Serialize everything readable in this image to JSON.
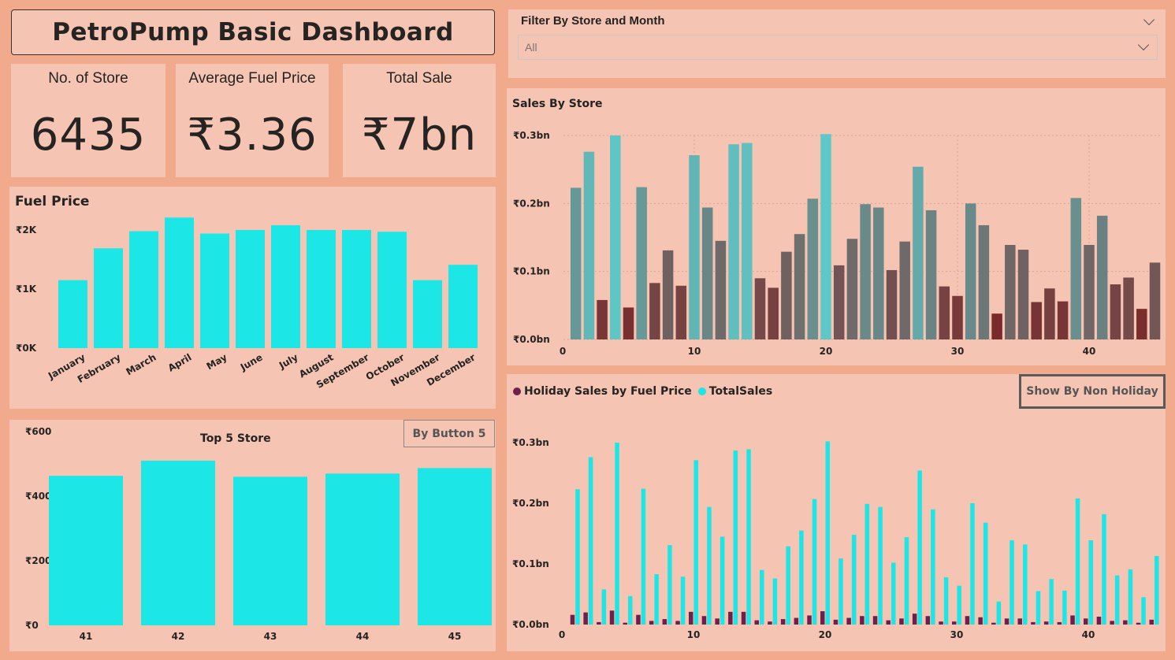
{
  "header": {
    "title": "PetroPump Basic Dashboard"
  },
  "cards": [
    {
      "label": "No. of Store",
      "value": "6435"
    },
    {
      "label": "Average Fuel Price",
      "value": "₹3.36"
    },
    {
      "label": "Total Sale",
      "value": "₹7bn"
    }
  ],
  "filter": {
    "title": "Filter By Store and Month",
    "value": "All"
  },
  "buttons": {
    "top5": "By Button 5",
    "non_holiday": "Show By Non Holiday"
  },
  "colors": {
    "page_bg": "#f2aa8c",
    "panel_bg": "#f5c4b3",
    "cyan": "#1de6e6",
    "holiday": "#6e1f4a"
  },
  "chart_data": [
    {
      "id": "fuel_price",
      "type": "bar",
      "title": "Fuel Price",
      "categories": [
        "January",
        "February",
        "March",
        "April",
        "May",
        "June",
        "July",
        "August",
        "September",
        "October",
        "November",
        "December"
      ],
      "values": [
        1150,
        1690,
        1980,
        2210,
        1940,
        2000,
        2080,
        2000,
        2000,
        1970,
        1150,
        1410
      ],
      "yticks": [
        "₹0K",
        "₹1K",
        "₹2K"
      ],
      "ylim": [
        0,
        2000
      ],
      "grid": false
    },
    {
      "id": "top5",
      "type": "bar",
      "title": "Top 5 Store",
      "categories": [
        "41",
        "42",
        "43",
        "44",
        "45"
      ],
      "values": [
        463,
        510,
        460,
        470,
        487
      ],
      "yticks": [
        "₹0",
        "₹200",
        "₹400",
        "₹600"
      ],
      "ylim": [
        0,
        600
      ],
      "grid": false
    },
    {
      "id": "sales_by_store",
      "type": "bar",
      "title": "Sales By Store",
      "x": [
        1,
        2,
        3,
        4,
        5,
        6,
        7,
        8,
        9,
        10,
        11,
        12,
        13,
        14,
        15,
        16,
        17,
        18,
        19,
        20,
        21,
        22,
        23,
        24,
        25,
        26,
        27,
        28,
        29,
        30,
        31,
        32,
        33,
        34,
        35,
        36,
        37,
        38,
        39,
        40,
        41,
        42,
        43,
        44,
        45
      ],
      "values": [
        0.223,
        0.276,
        0.058,
        0.3,
        0.047,
        0.224,
        0.083,
        0.131,
        0.079,
        0.271,
        0.194,
        0.145,
        0.287,
        0.289,
        0.09,
        0.076,
        0.129,
        0.155,
        0.207,
        0.302,
        0.109,
        0.148,
        0.199,
        0.194,
        0.102,
        0.144,
        0.254,
        0.19,
        0.078,
        0.064,
        0.2,
        0.168,
        0.038,
        0.139,
        0.132,
        0.055,
        0.075,
        0.056,
        0.208,
        0.139,
        0.182,
        0.081,
        0.091,
        0.045,
        0.113
      ],
      "xticks": [
        "0",
        "10",
        "20",
        "30",
        "40"
      ],
      "yticks": [
        "₹0.0bn",
        "₹0.1bn",
        "₹0.2bn",
        "₹0.3bn"
      ],
      "ylim": [
        0,
        0.3
      ],
      "color_scale": {
        "low": "#7a2a2a",
        "high": "#5fc7c7"
      },
      "grid": true
    },
    {
      "id": "holiday_sales",
      "type": "bar",
      "series": [
        {
          "name": "Holiday Sales by Fuel Price",
          "color": "#6e1f4a",
          "values": [
            0.016,
            0.02,
            0.004,
            0.023,
            0.003,
            0.016,
            0.006,
            0.009,
            0.006,
            0.021,
            0.014,
            0.01,
            0.021,
            0.021,
            0.007,
            0.005,
            0.009,
            0.011,
            0.015,
            0.022,
            0.008,
            0.011,
            0.014,
            0.014,
            0.007,
            0.01,
            0.018,
            0.014,
            0.005,
            0.005,
            0.014,
            0.012,
            0.003,
            0.01,
            0.01,
            0.004,
            0.005,
            0.004,
            0.015,
            0.01,
            0.013,
            0.006,
            0.007,
            0.003,
            0.008
          ]
        },
        {
          "name": "TotalSales",
          "color": "#1de6e6",
          "values": [
            0.223,
            0.276,
            0.058,
            0.3,
            0.047,
            0.224,
            0.083,
            0.131,
            0.079,
            0.271,
            0.194,
            0.145,
            0.287,
            0.289,
            0.09,
            0.076,
            0.129,
            0.155,
            0.207,
            0.302,
            0.109,
            0.148,
            0.199,
            0.194,
            0.102,
            0.144,
            0.254,
            0.19,
            0.078,
            0.064,
            0.2,
            0.168,
            0.038,
            0.139,
            0.132,
            0.055,
            0.075,
            0.056,
            0.208,
            0.139,
            0.182,
            0.081,
            0.091,
            0.045,
            0.113
          ]
        }
      ],
      "x": [
        1,
        2,
        3,
        4,
        5,
        6,
        7,
        8,
        9,
        10,
        11,
        12,
        13,
        14,
        15,
        16,
        17,
        18,
        19,
        20,
        21,
        22,
        23,
        24,
        25,
        26,
        27,
        28,
        29,
        30,
        31,
        32,
        33,
        34,
        35,
        36,
        37,
        38,
        39,
        40,
        41,
        42,
        43,
        44,
        45
      ],
      "xticks": [
        "0",
        "10",
        "20",
        "30",
        "40"
      ],
      "yticks": [
        "₹0.0bn",
        "₹0.1bn",
        "₹0.2bn",
        "₹0.3bn"
      ],
      "ylim": [
        0,
        0.3
      ],
      "legend": "top-left",
      "grid": false
    }
  ]
}
